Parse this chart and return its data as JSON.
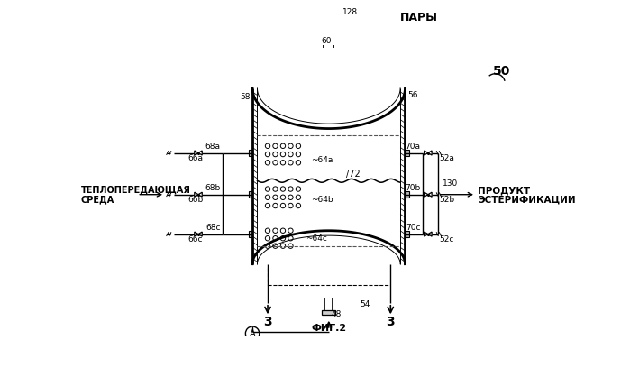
{
  "title": "ФИГ.2",
  "label_50": "50",
  "label_128": "128",
  "label_60": "60",
  "label_pary": "ПАРЫ",
  "label_58": "58",
  "label_56": "56",
  "label_68a": "68a",
  "label_68b": "68b",
  "label_68c": "68c",
  "label_66a": "66a",
  "label_66b": "66b",
  "label_66c": "66c",
  "label_64a": "~64a",
  "label_64b": "~64b",
  "label_64c": "~64c",
  "label_72": "/72",
  "label_70a": "70a",
  "label_70b": "70b",
  "label_70c": "70c",
  "label_52a": "52a",
  "label_52b": "52b",
  "label_52c": "52c",
  "label_teplopered1": "ТЕПЛОПЕРЕДАЮЩАЯ",
  "label_teplopered2": "СРЕДА",
  "label_130": "130",
  "label_produkt1": "ПРОДУКТ",
  "label_produkt2": "ЭСТЕРИФИКАЦИИ",
  "label_3": "3",
  "label_48": "48",
  "label_54": "54",
  "label_A": "A",
  "bg_color": "#ffffff",
  "line_color": "#000000"
}
